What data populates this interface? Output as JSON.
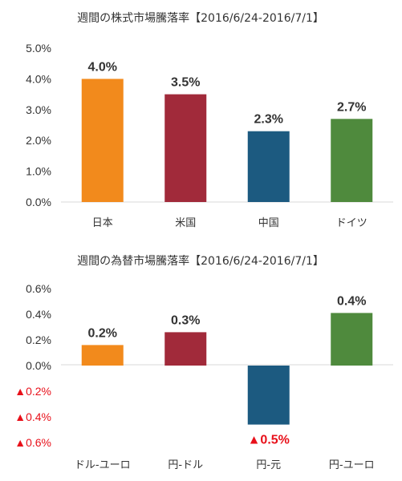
{
  "chart_data": [
    {
      "type": "bar",
      "title": "週間の株式市場騰落率【2016/6/24-2016/7/1】",
      "categories": [
        "日本",
        "米国",
        "中国",
        "ドイツ"
      ],
      "values": [
        4.0,
        3.5,
        2.3,
        2.7
      ],
      "data_labels": [
        "4.0%",
        "3.5%",
        "2.3%",
        "2.7%"
      ],
      "colors": [
        "#f28a1c",
        "#a12a3a",
        "#1c5a80",
        "#4f8a3d"
      ],
      "ylim": [
        0,
        5
      ],
      "yticks": [
        "0.0%",
        "1.0%",
        "2.0%",
        "3.0%",
        "4.0%",
        "5.0%"
      ],
      "ytick_values": [
        0,
        1,
        2,
        3,
        4,
        5
      ],
      "xlabel": "",
      "ylabel": "",
      "grid": false,
      "legend": "none"
    },
    {
      "type": "bar",
      "title": "週間の為替市場騰落率【2016/6/24-2016/7/1】",
      "categories": [
        "ドル-ユーロ",
        "円-ドル",
        "円-元",
        "円-ユーロ"
      ],
      "values": [
        0.16,
        0.26,
        -0.46,
        0.41
      ],
      "data_labels": [
        "0.2%",
        "0.3%",
        "▲0.5%",
        "0.4%"
      ],
      "colors": [
        "#f28a1c",
        "#a12a3a",
        "#1c5a80",
        "#4f8a3d"
      ],
      "ylim": [
        -0.6,
        0.6
      ],
      "yticks": [
        "▲0.6%",
        "▲0.4%",
        "▲0.2%",
        "0.0%",
        "0.2%",
        "0.4%",
        "0.6%"
      ],
      "ytick_values": [
        -0.6,
        -0.4,
        -0.2,
        0,
        0.2,
        0.4,
        0.6
      ],
      "negative_label_color": "#e8101a",
      "xlabel": "",
      "ylabel": "",
      "grid": false,
      "legend": "none"
    }
  ]
}
